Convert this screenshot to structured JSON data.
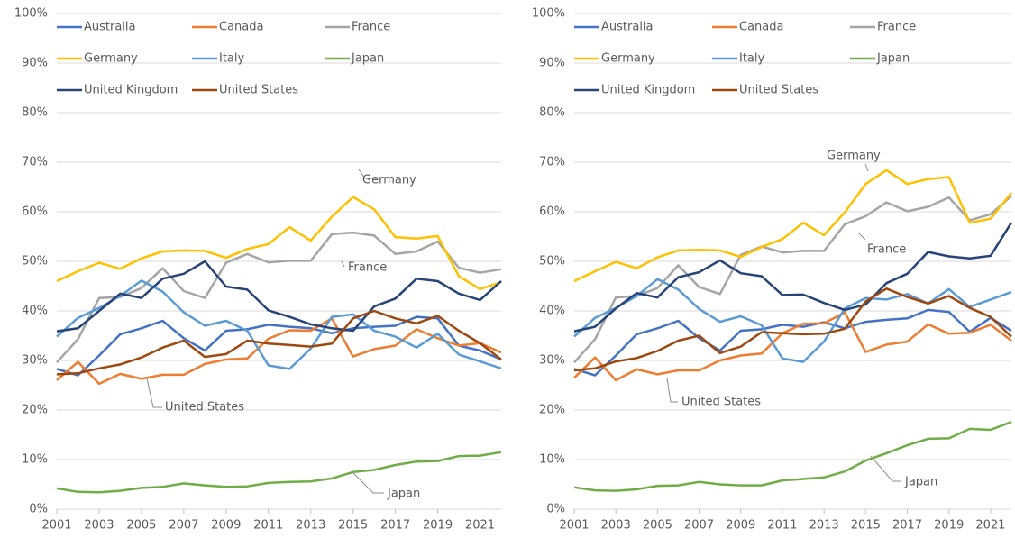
{
  "chart_data": [
    {
      "type": "line",
      "xlim": [
        2001,
        2022
      ],
      "xticks": [
        2001,
        2003,
        2005,
        2007,
        2009,
        2011,
        2013,
        2015,
        2017,
        2019,
        2021
      ],
      "ylim": [
        0,
        100
      ],
      "yticks": [
        {
          "value": 0,
          "label": "0%"
        },
        {
          "value": 10,
          "label": "10%"
        },
        {
          "value": 20,
          "label": "20%"
        },
        {
          "value": 30,
          "label": "30%"
        },
        {
          "value": 40,
          "label": "40%"
        },
        {
          "value": 50,
          "label": "50%"
        },
        {
          "value": 60,
          "label": "60%"
        },
        {
          "value": 70,
          "label": "70%"
        },
        {
          "value": 80,
          "label": "80%"
        },
        {
          "value": 90,
          "label": "90%"
        },
        {
          "value": 100,
          "label": "100%"
        }
      ],
      "grid": true,
      "x": [
        2001,
        2002,
        2003,
        2004,
        2005,
        2006,
        2007,
        2008,
        2009,
        2010,
        2011,
        2012,
        2013,
        2014,
        2015,
        2016,
        2017,
        2018,
        2019,
        2020,
        2021,
        2022
      ],
      "series": [
        {
          "name": "Australia",
          "color": "#4472c4",
          "values": [
            28.3,
            27,
            31,
            35.3,
            36.5,
            38,
            34.5,
            32,
            36,
            36.3,
            37.2,
            36.8,
            36.5,
            35.5,
            36.5,
            36.8,
            37,
            38.8,
            38.5,
            33,
            32,
            30.2
          ]
        },
        {
          "name": "Canada",
          "color": "#ed7d31",
          "values": [
            26,
            29.7,
            25.3,
            27.3,
            26.3,
            27.1,
            27.1,
            29.3,
            30.2,
            30.4,
            34.4,
            36.1,
            36,
            38.5,
            30.8,
            32.3,
            33,
            36.3,
            34.5,
            33,
            33.5,
            31.6
          ]
        },
        {
          "name": "France",
          "color": "#a5a5a5",
          "values": [
            29.6,
            34.3,
            42.6,
            42.8,
            44.6,
            48.6,
            44,
            42.6,
            49.7,
            51.5,
            49.8,
            50.1,
            50.1,
            55.5,
            55.8,
            55.2,
            51.5,
            52,
            54,
            48.7,
            47.7,
            48.4
          ]
        },
        {
          "name": "Germany",
          "color": "#ffc000",
          "values": [
            46,
            48,
            49.7,
            48.5,
            50.6,
            52,
            52.2,
            52.1,
            50.7,
            52.5,
            53.5,
            56.9,
            54.2,
            59,
            63,
            60.5,
            54.9,
            54.6,
            55.1,
            47,
            44.4,
            45.8
          ]
        },
        {
          "name": "Italy",
          "color": "#5b9bd5",
          "values": [
            34.8,
            38.6,
            40.6,
            43,
            46.1,
            43.9,
            39.7,
            37,
            38,
            36,
            29,
            28.3,
            32.4,
            38.8,
            39.3,
            36,
            34.8,
            32.6,
            35.4,
            31.2,
            29.8,
            28.4
          ]
        },
        {
          "name": "Japan",
          "color": "#70ad47",
          "values": [
            4.2,
            3.5,
            3.4,
            3.7,
            4.3,
            4.5,
            5.2,
            4.8,
            4.5,
            4.6,
            5.3,
            5.5,
            5.6,
            6.2,
            7.5,
            7.9,
            8.9,
            9.6,
            9.7,
            10.7,
            10.8,
            11.5
          ]
        },
        {
          "name": "United Kingdom",
          "color": "#264478",
          "values": [
            35.9,
            36.5,
            40,
            43.5,
            42.6,
            46.5,
            47.5,
            50,
            44.9,
            44.3,
            40.1,
            38.8,
            37.3,
            36.5,
            36,
            40.9,
            42.5,
            46.5,
            46,
            43.5,
            42.2,
            46
          ]
        },
        {
          "name": "United States",
          "color": "#9e480e",
          "values": [
            27.2,
            27.4,
            28.4,
            29.2,
            30.6,
            32.6,
            34,
            30.7,
            31.3,
            34,
            33.4,
            33.1,
            32.8,
            33.4,
            38.5,
            40,
            38.5,
            37.5,
            39,
            36,
            33.5,
            30.2
          ]
        }
      ],
      "annotations": [
        "Germany",
        "France",
        "United States",
        "Japan"
      ]
    },
    {
      "type": "line",
      "xlim": [
        2001,
        2022
      ],
      "xticks": [
        2001,
        2003,
        2005,
        2007,
        2009,
        2011,
        2013,
        2015,
        2017,
        2019,
        2021
      ],
      "ylim": [
        0,
        100
      ],
      "yticks": [
        {
          "value": 0,
          "label": "0%"
        },
        {
          "value": 10,
          "label": "10%"
        },
        {
          "value": 20,
          "label": "20%"
        },
        {
          "value": 30,
          "label": "30%"
        },
        {
          "value": 40,
          "label": "40%"
        },
        {
          "value": 50,
          "label": "50%"
        },
        {
          "value": 60,
          "label": "60%"
        },
        {
          "value": 70,
          "label": "70%"
        },
        {
          "value": 80,
          "label": "80%"
        },
        {
          "value": 90,
          "label": "90%"
        },
        {
          "value": 100,
          "label": "100%"
        }
      ],
      "grid": true,
      "x": [
        2001,
        2002,
        2003,
        2004,
        2005,
        2006,
        2007,
        2008,
        2009,
        2010,
        2011,
        2012,
        2013,
        2014,
        2015,
        2016,
        2017,
        2018,
        2019,
        2020,
        2021,
        2022
      ],
      "series": [
        {
          "name": "Australia",
          "color": "#4472c4",
          "values": [
            28.3,
            27,
            31,
            35.3,
            36.5,
            38,
            34.5,
            32,
            36,
            36.3,
            37.2,
            36.8,
            37.7,
            36.5,
            37.8,
            38.2,
            38.5,
            40.2,
            39.8,
            35.8,
            38.6,
            36
          ]
        },
        {
          "name": "Canada",
          "color": "#ed7d31",
          "values": [
            26.5,
            30.6,
            26,
            28.2,
            27.2,
            28,
            28,
            30,
            31,
            31.4,
            35.5,
            37.4,
            37.5,
            39.7,
            31.7,
            33.2,
            33.8,
            37.3,
            35.4,
            35.6,
            37.2,
            34
          ]
        },
        {
          "name": "France",
          "color": "#a5a5a5",
          "values": [
            29.6,
            34.3,
            42.7,
            43,
            44.6,
            49.2,
            44.8,
            43.4,
            51.3,
            53,
            51.8,
            52.1,
            52.1,
            57.5,
            59.1,
            61.9,
            60.1,
            61,
            62.9,
            58.3,
            59.5,
            63.2
          ]
        },
        {
          "name": "Germany",
          "color": "#ffc000",
          "values": [
            46,
            48,
            49.9,
            48.6,
            50.8,
            52.2,
            52.3,
            52.2,
            50.9,
            52.9,
            54.5,
            57.8,
            55.3,
            59.9,
            65.6,
            68.4,
            65.6,
            66.6,
            67,
            57.8,
            58.6,
            63.8
          ]
        },
        {
          "name": "Italy",
          "color": "#5b9bd5",
          "values": [
            34.8,
            38.6,
            40.6,
            43,
            46.4,
            44.3,
            40.4,
            37.8,
            38.9,
            37.1,
            30.4,
            29.7,
            33.8,
            40.5,
            42.6,
            42.3,
            43.4,
            41.5,
            44.4,
            40.8,
            42.3,
            43.8
          ]
        },
        {
          "name": "Japan",
          "color": "#70ad47",
          "values": [
            4.4,
            3.8,
            3.7,
            4,
            4.7,
            4.8,
            5.5,
            5,
            4.8,
            4.8,
            5.8,
            6.1,
            6.4,
            7.6,
            9.8,
            11.3,
            12.9,
            14.2,
            14.3,
            16.2,
            16,
            17.6
          ]
        },
        {
          "name": "United Kingdom",
          "color": "#264478",
          "values": [
            35.9,
            36.8,
            40.5,
            43.6,
            42.7,
            46.8,
            47.8,
            50.2,
            47.6,
            47,
            43.2,
            43.3,
            41.6,
            40.2,
            41.3,
            45.6,
            47.5,
            51.9,
            51,
            50.6,
            51.1,
            57.8
          ]
        },
        {
          "name": "United States",
          "color": "#9e480e",
          "values": [
            28,
            28.4,
            29.8,
            30.5,
            31.9,
            34,
            35,
            31.5,
            32.8,
            35.7,
            35.5,
            35.3,
            35.4,
            36.4,
            41.9,
            44.5,
            42.8,
            41.5,
            43,
            40.6,
            38.8,
            34.8
          ]
        }
      ],
      "annotations": [
        "Germany",
        "France",
        "United States",
        "Japan"
      ]
    }
  ]
}
